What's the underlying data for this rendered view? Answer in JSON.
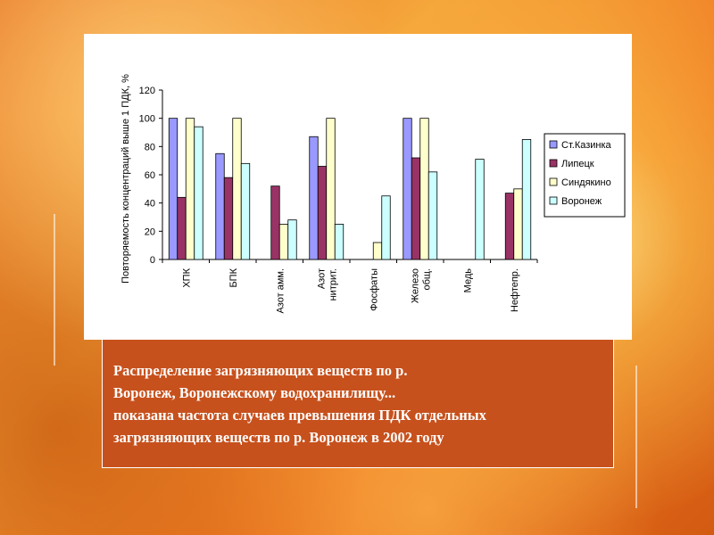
{
  "chart_data": {
    "type": "bar",
    "title": "",
    "xlabel": "",
    "ylabel": "Повторяемость концентраций выше 1 ПДК, %",
    "ylim": [
      0,
      120
    ],
    "yticks": [
      0,
      20,
      40,
      60,
      80,
      100,
      120
    ],
    "grid": false,
    "legend_position": "right",
    "categories": [
      [
        "ХПК"
      ],
      [
        "БПК"
      ],
      [
        "Азот амм."
      ],
      [
        "Азот",
        "нитрит."
      ],
      [
        "Фосфаты"
      ],
      [
        "Железо",
        "общ."
      ],
      [
        "Медь"
      ],
      [
        "Нефтепр."
      ]
    ],
    "series": [
      {
        "name": "Ст.Казинка",
        "color": "#9999ff",
        "values": [
          100,
          75,
          null,
          87,
          null,
          100,
          null,
          null
        ]
      },
      {
        "name": "Липецк",
        "color": "#993366",
        "values": [
          44,
          58,
          52,
          66,
          null,
          72,
          null,
          47
        ]
      },
      {
        "name": "Синдякино",
        "color": "#ffffcc",
        "values": [
          100,
          100,
          25,
          100,
          12,
          100,
          null,
          50
        ]
      },
      {
        "name": "Воронеж",
        "color": "#ccffff",
        "values": [
          94,
          68,
          28,
          25,
          45,
          62,
          71,
          85
        ]
      }
    ]
  },
  "caption": {
    "lines": [
      "Распределение загрязняющих веществ по р.",
      "Воронеж, Воронежскому водохранилищу...",
      "показана частота случаев превышения ПДК отдельных",
      "загрязняющих веществ по р. Воронеж в 2002 году"
    ]
  }
}
